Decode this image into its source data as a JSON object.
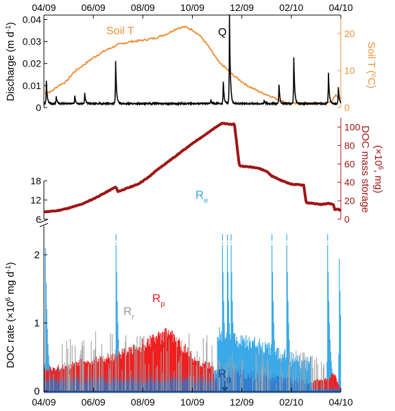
{
  "colors": {
    "discharge": "#000000",
    "soil_t": "#f0913a",
    "storage": "#a01414",
    "re": "#3aa9e8",
    "rp": "#f01e1e",
    "rr": "#a8a8a8",
    "rg": "#1f4e8c",
    "re_dark": "#2e73c9"
  },
  "chart_data": [
    {
      "id": "top",
      "type": "line",
      "x_ticks": [
        "04/09",
        "06/09",
        "08/09",
        "10/09",
        "12/09",
        "02/10",
        "04/10"
      ],
      "x_range_months": [
        0,
        12
      ],
      "left_axis": {
        "label": "Discharge (m d",
        "label_sup": "-1",
        "label_end": ")",
        "ticks": [
          "0",
          "0.01",
          "0.02",
          "0.03",
          "0.04"
        ],
        "ylim": [
          0,
          0.042
        ]
      },
      "right_axis": {
        "label": "Soil T (",
        "label_sup": "o",
        "label_end": "C)",
        "ticks": [
          "0",
          "10",
          "20"
        ],
        "ylim": [
          0,
          25
        ]
      },
      "series": [
        {
          "name": "Soil T",
          "axis": "right",
          "points": [
            [
              0,
              4
            ],
            [
              0.3,
              4.3
            ],
            [
              0.6,
              6
            ],
            [
              0.9,
              7
            ],
            [
              1.2,
              9.5
            ],
            [
              1.5,
              11
            ],
            [
              2.0,
              13.5
            ],
            [
              2.5,
              15.5
            ],
            [
              3.0,
              17
            ],
            [
              3.5,
              17.8
            ],
            [
              4.0,
              18.2
            ],
            [
              4.5,
              18.8
            ],
            [
              5.0,
              20
            ],
            [
              5.4,
              21.5
            ],
            [
              5.7,
              21.8
            ],
            [
              6.0,
              21
            ],
            [
              6.3,
              19.5
            ],
            [
              6.6,
              17
            ],
            [
              6.9,
              14
            ],
            [
              7.1,
              12
            ],
            [
              7.3,
              11
            ],
            [
              7.6,
              9
            ],
            [
              7.9,
              7.5
            ],
            [
              8.2,
              6
            ],
            [
              8.5,
              5
            ],
            [
              8.8,
              4
            ],
            [
              9.2,
              3
            ],
            [
              9.5,
              2
            ],
            [
              9.8,
              1.3
            ],
            [
              10.2,
              1
            ],
            [
              10.6,
              1
            ],
            [
              11.0,
              1
            ],
            [
              11.4,
              1.2
            ],
            [
              11.6,
              1.6
            ],
            [
              11.8,
              3.2
            ],
            [
              12.0,
              2.4
            ]
          ]
        },
        {
          "name": "Q",
          "axis": "left",
          "base": 0.0018,
          "peaks": [
            [
              0.1,
              0.012
            ],
            [
              0.5,
              0.005
            ],
            [
              1.25,
              0.0055
            ],
            [
              1.65,
              0.0065
            ],
            [
              2.9,
              0.021
            ],
            [
              6.75,
              0.0035
            ],
            [
              7.25,
              0.012
            ],
            [
              7.5,
              0.042
            ],
            [
              8.9,
              0.0035
            ],
            [
              9.5,
              0.0105
            ],
            [
              10.1,
              0.0228
            ],
            [
              11.5,
              0.016
            ],
            [
              11.9,
              0.0095
            ]
          ]
        }
      ]
    },
    {
      "id": "middle",
      "type": "line",
      "right_axis": {
        "label": "DOC mass storage",
        "label_line2": "(×10",
        "label_sup": "6",
        "label_end": ", mg)",
        "ticks": [
          "0",
          "20",
          "40",
          "60",
          "80",
          "100"
        ],
        "ylim": [
          0,
          110
        ]
      },
      "left_axis": {
        "ticks": [
          "6",
          "12",
          "18"
        ],
        "range": [
          6,
          18
        ]
      },
      "series": [
        {
          "name": "DOC mass storage",
          "points": [
            [
              0,
              8
            ],
            [
              0.5,
              9
            ],
            [
              1.0,
              12
            ],
            [
              1.5,
              16
            ],
            [
              2.0,
              22
            ],
            [
              2.5,
              29
            ],
            [
              2.9,
              35
            ],
            [
              3.0,
              30
            ],
            [
              3.4,
              34
            ],
            [
              3.8,
              38
            ],
            [
              4.2,
              45
            ],
            [
              4.6,
              54
            ],
            [
              5.0,
              62
            ],
            [
              5.4,
              70
            ],
            [
              5.8,
              78
            ],
            [
              6.2,
              86
            ],
            [
              6.6,
              93
            ],
            [
              7.0,
              101
            ],
            [
              7.2,
              104
            ],
            [
              7.5,
              103
            ],
            [
              7.7,
              103
            ],
            [
              7.9,
              58
            ],
            [
              8.2,
              57
            ],
            [
              8.6,
              56
            ],
            [
              9.0,
              52
            ],
            [
              9.2,
              47
            ],
            [
              9.6,
              42
            ],
            [
              10.0,
              38
            ],
            [
              10.5,
              37
            ],
            [
              10.6,
              18
            ],
            [
              10.9,
              17
            ],
            [
              11.2,
              16
            ],
            [
              11.5,
              17
            ],
            [
              11.7,
              16
            ],
            [
              11.75,
              10
            ],
            [
              11.9,
              11
            ],
            [
              12.0,
              9
            ]
          ]
        }
      ]
    },
    {
      "id": "bottom",
      "type": "bar",
      "y_axis": {
        "label": "DOC rate (×10",
        "label_sup": "6",
        "label_end": " mg d",
        "label_sup2": "-1",
        "label_end2": ")",
        "ticks": [
          "0",
          "1",
          "2"
        ],
        "ylim": [
          0,
          2.25
        ]
      },
      "x_ticks": [
        "04/09",
        "06/09",
        "08/09",
        "10/09",
        "12/09",
        "02/10",
        "04/10"
      ],
      "series": [
        {
          "name": "R",
          "subscript": "e"
        },
        {
          "name": "R",
          "subscript": "p"
        },
        {
          "name": "R",
          "subscript": "r"
        },
        {
          "name": "R",
          "subscript": "g"
        }
      ],
      "re_spikes": [
        [
          0.05,
          2.1
        ],
        [
          2.9,
          2.3
        ],
        [
          7.2,
          2.3
        ],
        [
          7.4,
          2.3
        ],
        [
          7.55,
          2.3
        ],
        [
          9.2,
          2.3
        ],
        [
          9.8,
          2.3
        ],
        [
          11.45,
          2.3
        ],
        [
          11.92,
          2.05
        ]
      ],
      "rp_envelope": [
        [
          0,
          0.35
        ],
        [
          0.5,
          0.38
        ],
        [
          1.0,
          0.42
        ],
        [
          1.5,
          0.48
        ],
        [
          2.0,
          0.52
        ],
        [
          2.5,
          0.55
        ],
        [
          3.0,
          0.6
        ],
        [
          3.5,
          0.68
        ],
        [
          4.0,
          0.78
        ],
        [
          4.5,
          0.85
        ],
        [
          4.9,
          0.95
        ],
        [
          5.3,
          0.9
        ],
        [
          5.7,
          0.7
        ],
        [
          6.0,
          0.55
        ],
        [
          6.4,
          0.45
        ],
        [
          6.8,
          0.42
        ],
        [
          7.0,
          0.0
        ],
        [
          10.8,
          0.0
        ],
        [
          10.9,
          0.18
        ],
        [
          11.5,
          0.2
        ],
        [
          11.7,
          0.3
        ],
        [
          11.9,
          0.1
        ],
        [
          12.0,
          0.0
        ]
      ]
    }
  ]
}
